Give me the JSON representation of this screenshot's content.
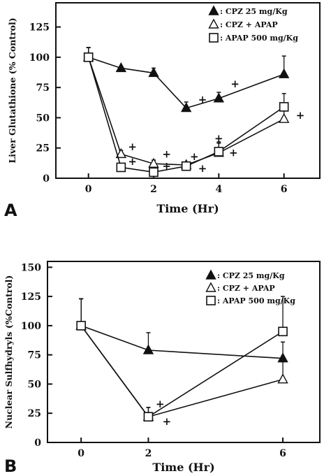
{
  "chart_data": [
    {
      "type": "line",
      "panel_label": "A",
      "xlabel": "Time (Hr)",
      "ylabel": "Liver Glutathione (% Control)",
      "xlim": [
        -1,
        7.1
      ],
      "ylim": [
        0,
        145
      ],
      "x_ticks": [
        0,
        2,
        4,
        6
      ],
      "x_tick_labels": [
        "0",
        "2",
        "4",
        "6"
      ],
      "y_ticks": [
        0,
        25,
        50,
        75,
        100,
        125
      ],
      "y_tick_labels": [
        "0",
        "25",
        "50",
        "75",
        "100",
        "125"
      ],
      "grid": false,
      "legend_position": "top-right",
      "series": [
        {
          "name": "CPZ 25 mg/Kg",
          "marker": "filled-triangle",
          "x": [
            0,
            1,
            2,
            3,
            4,
            6
          ],
          "values": [
            100,
            91,
            87,
            58,
            66,
            86
          ],
          "err": [
            8,
            0,
            4,
            5,
            5,
            15
          ]
        },
        {
          "name": "CPZ + APAP",
          "marker": "open-triangle",
          "x": [
            0,
            1,
            2,
            3,
            4,
            6
          ],
          "values": [
            100,
            20,
            12,
            11,
            21,
            49
          ],
          "err": [
            8,
            3,
            3,
            2,
            8,
            7
          ]
        },
        {
          "name": "APAP 500 mg/Kg",
          "marker": "open-square",
          "x": [
            0,
            1,
            2,
            3,
            4,
            6
          ],
          "values": [
            100,
            9,
            5,
            10,
            22,
            59
          ],
          "err": [
            8,
            2,
            2,
            2,
            8,
            11
          ]
        }
      ],
      "annotations": [
        {
          "text": "+",
          "x": 1.35,
          "y": 26
        },
        {
          "text": "+",
          "x": 1.35,
          "y": 14
        },
        {
          "text": "+",
          "x": 2.4,
          "y": 20
        },
        {
          "text": "+",
          "x": 2.4,
          "y": 10
        },
        {
          "text": "+",
          "x": 3.25,
          "y": 18
        },
        {
          "text": "+",
          "x": 3.5,
          "y": 65
        },
        {
          "text": "+",
          "x": 3.5,
          "y": 8
        },
        {
          "text": "+",
          "x": 4.0,
          "y": 33
        },
        {
          "text": "+",
          "x": 4.45,
          "y": 21
        },
        {
          "text": "+",
          "x": 4.5,
          "y": 78
        },
        {
          "text": "+",
          "x": 6.5,
          "y": 52
        }
      ]
    },
    {
      "type": "line",
      "panel_label": "B",
      "xlabel": "Time (Hr)",
      "ylabel": "Nuclear Sulfhydryls (%Control)",
      "xlim": [
        -1,
        7.1
      ],
      "ylim": [
        0,
        155
      ],
      "x_ticks": [
        0,
        2,
        6
      ],
      "x_tick_labels": [
        "0",
        "2",
        "6"
      ],
      "y_ticks": [
        0,
        25,
        50,
        75,
        100,
        125,
        150
      ],
      "y_tick_labels": [
        "0",
        "25",
        "50",
        "75",
        "100",
        "125",
        "150"
      ],
      "grid": false,
      "legend_position": "top-right",
      "series": [
        {
          "name": "CPZ 25 mg/Kg",
          "marker": "filled-triangle",
          "x": [
            0,
            2,
            6
          ],
          "values": [
            100,
            79,
            72
          ],
          "err": [
            23,
            15,
            14
          ]
        },
        {
          "name": "CPZ + APAP",
          "marker": "open-triangle",
          "x": [
            0,
            2,
            6
          ],
          "values": [
            100,
            22,
            54
          ],
          "err": [
            23,
            8,
            15
          ]
        },
        {
          "name": "APAP 500 mg/Kg",
          "marker": "open-square",
          "x": [
            0,
            2,
            6
          ],
          "values": [
            100,
            22,
            95
          ],
          "err": [
            23,
            8,
            30
          ]
        }
      ],
      "annotations": [
        {
          "text": "+",
          "x": 2.35,
          "y": 33
        },
        {
          "text": "+",
          "x": 2.55,
          "y": 18
        }
      ]
    }
  ]
}
